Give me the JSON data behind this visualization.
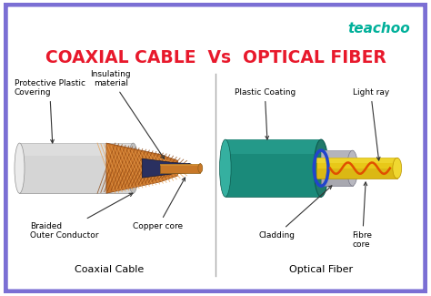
{
  "title": "COAXIAL CABLE  Vs  OPTICAL FIBER",
  "title_color": "#e8192c",
  "title_fontsize": 13.5,
  "background_color": "#ffffff",
  "border_color": "#7b6fd4",
  "border_linewidth": 10,
  "teachoo_text": "teachoo",
  "teachoo_color": "#00b09a",
  "teachoo_fontsize": 11,
  "left_label": "Coaxial Cable",
  "right_label": "Optical Fiber",
  "label_fontsize": 8,
  "annot_fontsize": 6.5
}
